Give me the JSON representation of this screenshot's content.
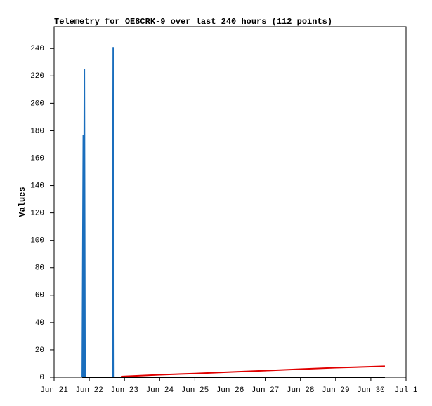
{
  "chart_data": {
    "type": "line",
    "title": "Telemetry for OE8CRK-9 over last 240 hours (112 points)",
    "ylabel": "Values",
    "xlim": [
      0,
      10
    ],
    "xticks": [
      {
        "value": 0,
        "label": "Jun 21"
      },
      {
        "value": 1,
        "label": "Jun 22"
      },
      {
        "value": 2,
        "label": "Jun 23"
      },
      {
        "value": 3,
        "label": "Jun 24"
      },
      {
        "value": 4,
        "label": "Jun 25"
      },
      {
        "value": 5,
        "label": "Jun 26"
      },
      {
        "value": 6,
        "label": "Jun 27"
      },
      {
        "value": 7,
        "label": "Jun 28"
      },
      {
        "value": 8,
        "label": "Jun 29"
      },
      {
        "value": 9,
        "label": "Jun 30"
      },
      {
        "value": 10,
        "label": "Jul 1"
      }
    ],
    "ylim": [
      0,
      256
    ],
    "yticks": [
      0,
      20,
      40,
      60,
      80,
      100,
      120,
      140,
      160,
      180,
      200,
      220,
      240
    ],
    "grid": false,
    "series": [
      {
        "color": "#1a6ebd",
        "x": [
          0.8,
          0.83,
          0.84,
          0.86,
          0.88,
          1.66,
          1.68,
          1.7,
          2.0
        ],
        "values": [
          0,
          177,
          0,
          225,
          0,
          0,
          241,
          0,
          0
        ]
      },
      {
        "color": "#000000",
        "x": [
          0.8,
          9.4
        ],
        "values": [
          0,
          0
        ]
      },
      {
        "color": "#e00000",
        "x": [
          1.9,
          3,
          4,
          5,
          6,
          7,
          8,
          9.4
        ],
        "values": [
          0.5,
          1.8,
          2.7,
          3.8,
          4.8,
          5.9,
          6.9,
          8.0
        ]
      }
    ]
  }
}
